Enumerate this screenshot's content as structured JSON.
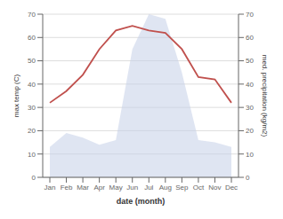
{
  "chart_data": {
    "type": "line",
    "xlabel": "date (month)",
    "ylabel": "max temp (C)",
    "y2label": "med. precipitation (kg/m2)",
    "categories": [
      "Jan",
      "Feb",
      "Mar",
      "Apr",
      "May",
      "Jun",
      "Jul",
      "Aug",
      "Sep",
      "Oct",
      "Nov",
      "Dec"
    ],
    "series": [
      {
        "type": "area",
        "axis": "y2",
        "color": "#c5cfe8",
        "values": [
          13,
          19,
          17,
          14,
          16,
          55,
          70,
          68,
          45,
          16,
          15,
          13
        ]
      },
      {
        "type": "line",
        "color": "#c0504d",
        "values": [
          32,
          37,
          44,
          55,
          63,
          65,
          63,
          62,
          55,
          43,
          42,
          32
        ]
      }
    ],
    "ylim": [
      0,
      70
    ],
    "yticks": [
      0,
      10,
      20,
      30,
      40,
      50,
      60,
      70
    ],
    "y2lim": [
      0,
      70
    ],
    "y2ticks": [
      0,
      10,
      20,
      30,
      40,
      50,
      60,
      70
    ],
    "grid": true
  }
}
